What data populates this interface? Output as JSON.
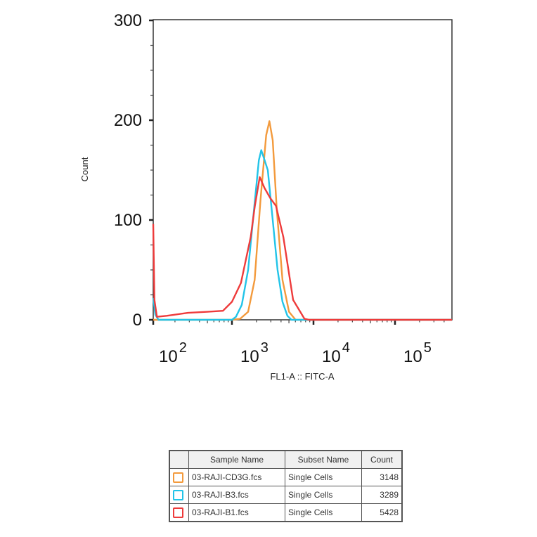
{
  "chart_data": {
    "type": "line",
    "title": "",
    "xlabel": "FL1-A :: FITC-A",
    "ylabel": "Count",
    "x_scale": "biexponential (log decades)",
    "xlim": [
      107,
      501000
    ],
    "ylim": [
      0,
      300
    ],
    "x_ticks": [
      {
        "base": "10",
        "exp": "2",
        "value": 100
      },
      {
        "base": "10",
        "exp": "3",
        "value": 1000
      },
      {
        "base": "10",
        "exp": "4",
        "value": 10000
      },
      {
        "base": "10",
        "exp": "5",
        "value": 100000
      }
    ],
    "y_ticks": [
      "0",
      "100",
      "200",
      "300"
    ],
    "grid": false,
    "legend_position": "bottom (table below chart)",
    "series": [
      {
        "name": "03-RAJI-CD3G.fcs",
        "color": "#f39a3c",
        "x": [
          107,
          1000,
          1260,
          1580,
          1900,
          2240,
          2630,
          2880,
          3160,
          3550,
          4170,
          5010,
          6030,
          501000
        ],
        "y": [
          0,
          0,
          1,
          8,
          40,
          120,
          185,
          199,
          180,
          110,
          40,
          8,
          0,
          0
        ]
      },
      {
        "name": "03-RAJI-B3.fcs",
        "color": "#22c4e8",
        "x": [
          107,
          115,
          126,
          1000,
          1120,
          1320,
          1580,
          1860,
          2140,
          2290,
          2510,
          2750,
          3160,
          3630,
          4170,
          4790,
          5370,
          501000
        ],
        "y": [
          22,
          5,
          0,
          0,
          3,
          15,
          50,
          110,
          160,
          170,
          160,
          150,
          100,
          50,
          18,
          4,
          0,
          0
        ]
      },
      {
        "name": "03-RAJI-B1.fcs",
        "color": "#ee3b3b",
        "x": [
          107,
          112,
          120,
          158,
          288,
          501,
          776,
          1000,
          1290,
          1700,
          1910,
          2190,
          2510,
          2950,
          3470,
          4270,
          5620,
          7760,
          8910,
          501000
        ],
        "y": [
          96,
          20,
          3,
          4,
          7,
          8,
          9,
          18,
          37,
          83,
          114,
          143,
          132,
          122,
          114,
          83,
          20,
          1,
          0,
          0
        ]
      }
    ]
  },
  "legend_table": {
    "headers": [
      "",
      "Sample Name",
      "Subset Name",
      "Count"
    ],
    "rows": [
      {
        "sample": "03-RAJI-CD3G.fcs",
        "subset": "Single Cells",
        "count": "3148",
        "color": "#f39a3c"
      },
      {
        "sample": "03-RAJI-B3.fcs",
        "subset": "Single Cells",
        "count": "3289",
        "color": "#22c4e8"
      },
      {
        "sample": "03-RAJI-B1.fcs",
        "subset": "Single Cells",
        "count": "5428",
        "color": "#ee3b3b"
      }
    ]
  }
}
